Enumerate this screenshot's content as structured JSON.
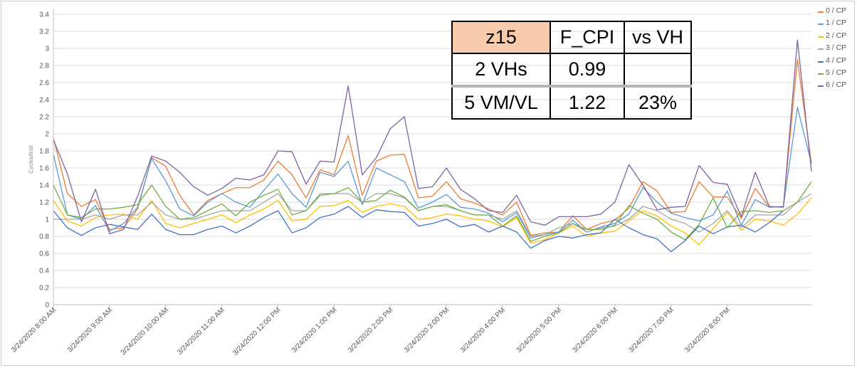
{
  "chart_data": {
    "type": "line",
    "ylabel": "Cycles/Inst",
    "ylim": [
      0,
      3.4
    ],
    "yticks": [
      "0",
      "0.2",
      "0.4",
      "0.6",
      "0.8",
      "1",
      "1.2",
      "1.4",
      "1.6",
      "1.8",
      "2",
      "2.2",
      "2.4",
      "2.6",
      "2.8",
      "3",
      "3.2",
      "3.4"
    ],
    "xtick_labels": [
      "3/24/2020 8:00 AM",
      "3/24/2020 9:00 AM",
      "3/24/2020 10:00 AM",
      "3/24/2020 11:00 AM",
      "3/24/2020 12:00 PM",
      "3/24/2020 1:00 PM",
      "3/24/2020 2:00 PM",
      "3/24/2020 3:00 PM",
      "3/24/2020 4:00 PM",
      "3/24/2020 5:00 PM",
      "3/24/2020 6:00 PM",
      "3/24/2020 7:00 PM",
      "3/24/2020 8:00 PM"
    ],
    "points_per_hour": 4,
    "grid": true,
    "legend_position": "right",
    "series": [
      {
        "name": "0 / CP",
        "color": "#ed7d31",
        "values": [
          1.95,
          1.3,
          1.15,
          1.23,
          0.88,
          0.9,
          1.12,
          1.72,
          1.62,
          1.28,
          1.05,
          1.22,
          1.3,
          1.37,
          1.37,
          1.46,
          1.68,
          1.52,
          1.25,
          1.58,
          1.52,
          1.98,
          1.28,
          1.68,
          1.75,
          1.76,
          1.25,
          1.27,
          1.44,
          1.24,
          1.19,
          1.12,
          1.05,
          1.2,
          0.81,
          0.84,
          0.85,
          1.04,
          0.88,
          0.95,
          0.99,
          1.13,
          1.44,
          1.33,
          1.08,
          1.09,
          1.44,
          1.26,
          1.26,
          1.01,
          1.36,
          1.14,
          1.15,
          2.87,
          1.65
        ]
      },
      {
        "name": "1 / CP",
        "color": "#5b9bd5",
        "values": [
          1.76,
          1.05,
          1.0,
          1.16,
          0.86,
          0.95,
          1.14,
          1.71,
          1.45,
          1.12,
          1.04,
          1.2,
          1.3,
          1.2,
          1.14,
          1.34,
          1.53,
          1.3,
          1.14,
          1.55,
          1.5,
          1.68,
          1.17,
          1.6,
          1.52,
          1.44,
          1.13,
          1.2,
          1.29,
          1.14,
          1.12,
          1.07,
          0.97,
          1.08,
          0.78,
          0.82,
          0.85,
          0.99,
          0.85,
          0.91,
          0.95,
          1.06,
          1.37,
          1.2,
          1.07,
          1.02,
          0.98,
          1.05,
          1.33,
          0.93,
          1.23,
          1.14,
          1.15,
          2.31,
          1.65
        ]
      },
      {
        "name": "2 / CP",
        "color": "#ffc000",
        "values": [
          1.22,
          0.98,
          0.92,
          1.02,
          1.05,
          1.06,
          1.0,
          1.22,
          0.95,
          0.9,
          0.95,
          1.0,
          1.05,
          0.96,
          1.05,
          1.12,
          1.22,
          0.98,
          1.0,
          1.15,
          1.16,
          1.22,
          1.08,
          1.15,
          1.18,
          1.15,
          1.0,
          1.02,
          1.06,
          1.04,
          1.0,
          0.98,
          0.91,
          1.02,
          0.72,
          0.76,
          0.84,
          0.92,
          0.8,
          0.84,
          0.86,
          0.98,
          1.1,
          1.04,
          0.92,
          0.84,
          0.7,
          0.89,
          1.08,
          0.87,
          1.0,
          0.98,
          0.93,
          1.06,
          1.25
        ]
      },
      {
        "name": "3 / CP",
        "color": "#a5a5a5",
        "values": [
          1.0,
          1.0,
          1.0,
          1.05,
          1.0,
          1.05,
          1.05,
          1.2,
          1.05,
          1.0,
          1.0,
          1.05,
          1.1,
          1.1,
          1.1,
          1.2,
          1.3,
          1.1,
          1.1,
          1.3,
          1.3,
          1.3,
          1.2,
          1.3,
          1.3,
          1.25,
          1.1,
          1.15,
          1.15,
          1.1,
          1.05,
          1.05,
          1.0,
          1.1,
          0.8,
          0.82,
          0.9,
          0.95,
          0.85,
          0.9,
          0.92,
          1.0,
          1.15,
          1.1,
          1.0,
          0.95,
          0.85,
          0.95,
          1.1,
          0.9,
          1.05,
          1.05,
          1.05,
          1.2,
          1.3
        ]
      },
      {
        "name": "4 / CP",
        "color": "#4472c4",
        "values": [
          1.1,
          0.9,
          0.81,
          0.9,
          0.94,
          0.91,
          0.88,
          1.06,
          0.88,
          0.82,
          0.82,
          0.88,
          0.92,
          0.84,
          0.92,
          1.02,
          1.1,
          0.84,
          0.9,
          1.02,
          1.06,
          1.15,
          1.02,
          1.11,
          1.09,
          1.08,
          0.92,
          0.95,
          1.0,
          0.91,
          0.94,
          0.85,
          0.92,
          0.85,
          0.66,
          0.75,
          0.8,
          0.78,
          0.82,
          0.84,
          1.0,
          0.9,
          0.82,
          0.77,
          0.62,
          0.75,
          0.92,
          0.83,
          0.91,
          0.93,
          0.85,
          0.96,
          1.1
        ]
      },
      {
        "name": "5 / CP",
        "color": "#70ad47",
        "values": [
          1.4,
          1.05,
          1.02,
          1.12,
          1.12,
          1.14,
          1.17,
          1.4,
          1.15,
          1.0,
          1.02,
          1.1,
          1.18,
          1.04,
          1.2,
          1.28,
          1.35,
          1.05,
          1.1,
          1.28,
          1.3,
          1.37,
          1.2,
          1.22,
          1.34,
          1.26,
          1.1,
          1.15,
          1.17,
          1.1,
          1.05,
          1.05,
          0.92,
          1.04,
          0.74,
          0.8,
          0.84,
          0.95,
          0.88,
          0.88,
          0.93,
          1.16,
          1.07,
          1.0,
          0.85,
          0.76,
          0.94,
          1.25,
          0.9,
          1.09,
          1.1,
          1.08,
          1.1,
          1.2,
          1.44
        ]
      },
      {
        "name": "6 / CP",
        "color": "#8064a2",
        "values": [
          1.93,
          1.53,
          0.97,
          1.35,
          0.83,
          0.88,
          1.27,
          1.74,
          1.68,
          1.55,
          1.38,
          1.28,
          1.36,
          1.48,
          1.46,
          1.52,
          1.8,
          1.79,
          1.41,
          1.68,
          1.67,
          2.56,
          1.52,
          1.72,
          2.06,
          2.2,
          1.36,
          1.38,
          1.6,
          1.35,
          1.24,
          1.1,
          1.08,
          1.28,
          0.97,
          0.93,
          1.03,
          1.03,
          1.03,
          1.06,
          1.2,
          1.64,
          1.4,
          1.11,
          1.14,
          1.15,
          1.63,
          1.43,
          1.41,
          1.03,
          1.55,
          1.15,
          1.14,
          3.1,
          1.56
        ]
      }
    ]
  },
  "inset_table": {
    "rows": [
      [
        "z15",
        "F_CPI",
        "vs VH"
      ],
      [
        "2 VHs",
        "0.99",
        ""
      ],
      [
        "5 VM/VL",
        "1.22",
        "23%"
      ]
    ]
  },
  "colors": {
    "highlight_cell": "#f8cbad",
    "grid": "#d9d9d9",
    "axis_text": "#555555"
  }
}
